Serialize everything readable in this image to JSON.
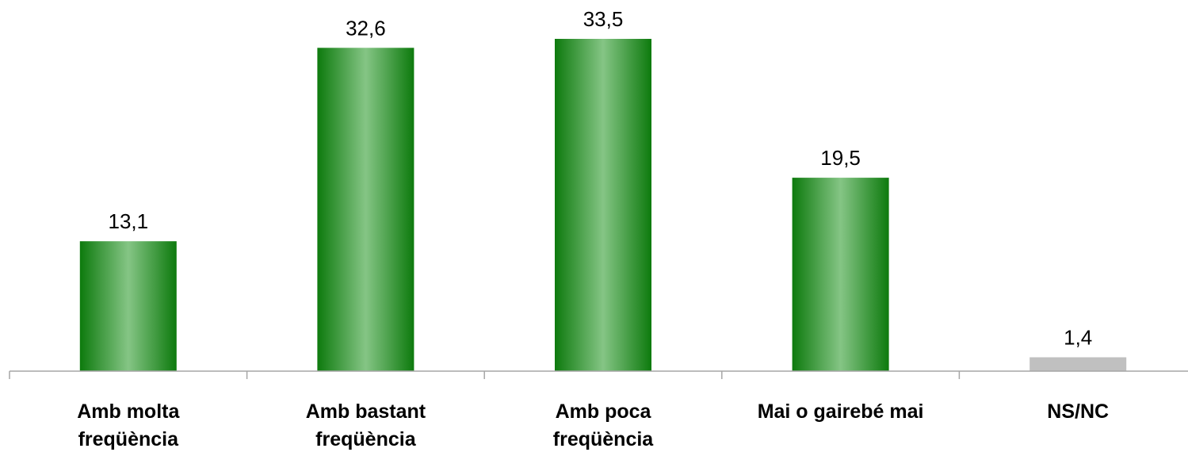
{
  "chart_data": {
    "type": "bar",
    "categories": [
      [
        "Amb molta",
        "freqüència"
      ],
      [
        "Amb bastant",
        "freqüència"
      ],
      [
        "Amb poca",
        "freqüència"
      ],
      [
        "Mai o gairebé mai"
      ],
      [
        "NS/NC"
      ]
    ],
    "values": [
      13.1,
      32.6,
      33.5,
      19.5,
      1.4
    ],
    "value_labels": [
      "13,1",
      "32,6",
      "33,5",
      "19,5",
      "1,4"
    ],
    "bar_styles": [
      "green-gradient",
      "green-gradient",
      "green-gradient",
      "green-gradient",
      "grey"
    ],
    "title": "",
    "xlabel": "",
    "ylabel": "",
    "ylim": [
      0,
      35
    ],
    "grid": false,
    "legend": "none"
  },
  "colors": {
    "bar_dark": "#0d7a0d",
    "bar_light": "#85c585",
    "bar_grey": "#c0c0c0",
    "axis": "#a6a6a6"
  }
}
